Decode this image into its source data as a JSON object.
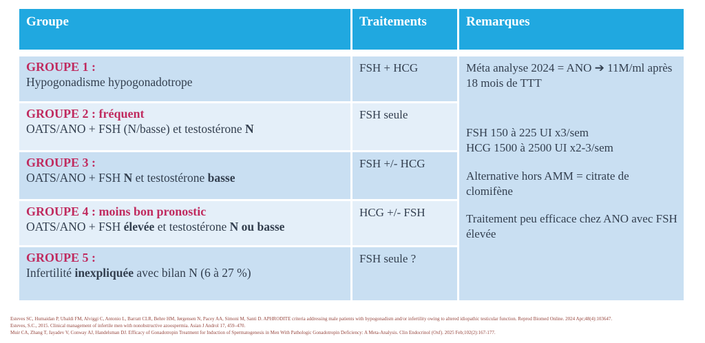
{
  "table": {
    "headers": {
      "groupe": "Groupe",
      "traitements": "Traitements",
      "remarques": "Remarques"
    },
    "rows": [
      {
        "title": "GROUPE 1 :",
        "desc": [
          "Hypogonadisme hypogonadotrope"
        ],
        "treatment": "FSH + HCG"
      },
      {
        "title": "GROUPE 2 : fréquent",
        "desc": [
          "OATS/ANO + FSH (N/basse) et testostérone ",
          "N"
        ],
        "treatment": "FSH seule"
      },
      {
        "title": "GROUPE 3 :",
        "desc": [
          "OATS/ANO + FSH ",
          "N",
          " et testostérone ",
          "basse"
        ],
        "treatment": "FSH +/- HCG"
      },
      {
        "title": "GROUPE 4 : moins bon pronostic",
        "desc": [
          "OATS/ANO + FSH ",
          "élevée",
          " et testostérone ",
          "N ou basse"
        ],
        "treatment": "HCG +/- FSH"
      },
      {
        "title": "GROUPE 5 :",
        "desc": [
          "Infertilité ",
          "inexpliquée",
          " avec bilan N (6 à 27 %)"
        ],
        "treatment": "FSH seule ?"
      }
    ]
  },
  "remarks": {
    "p1": "Méta analyse 2024 = ANO ➔ 11M/ml après 18 mois de TTT",
    "p2_line1": "FSH 150 à 225 UI x3/sem",
    "p2_line2": "HCG 1500 à 2500 UI x2-3/sem",
    "p3": "Alternative hors AMM = citrate de clomifène",
    "p4": "Traitement peu efficace chez ANO avec FSH élevée"
  },
  "citations": [
    "Esteves SC, Humaidan P, Ubaldi FM, Alviggi C, Antonio L, Barratt CLR, Behre HM, Jørgensen N, Pacey AA, Simoni M, Santi D. APHRODITE criteria addressing male patients with hypogonadism and/or infertility owing to altered idiopathic testicular function. Reprod Biomed Online. 2024 Apr;48(4):103647.",
    "Esteves, S.C., 2015. Clinical management of infertile men with nonobstructive azoospermia. Asian J Androl 17, 459–470.",
    "Muir CA, Zhang T, Jayadev V, Conway AJ, Handelsman DJ. Efficacy of Gonadotropin Treatment for Induction of Spermatogenesis in Men With Pathologic Gonadotropin Deficiency: A Meta-Analysis. Clin Endocrinol (Oxf). 2025 Feb;102(2):167-177."
  ],
  "colors": {
    "header_blue": "#20A8E0",
    "row_dark": "#C9DFF2",
    "row_light": "#E4EFF9",
    "accent_crimson": "#C02B5F",
    "body_text": "#333F4F",
    "citation_text": "#96463E"
  }
}
